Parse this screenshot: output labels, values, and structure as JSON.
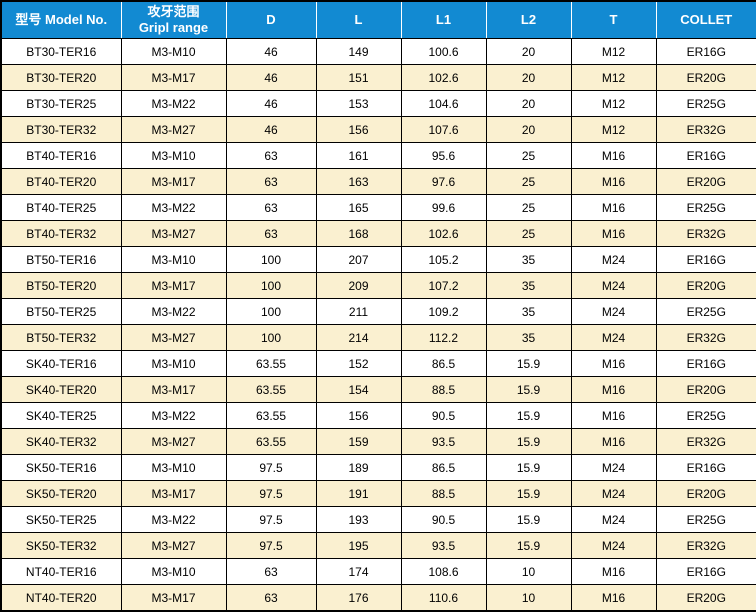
{
  "table": {
    "headers": [
      {
        "key": "model",
        "lines": [
          "型号 Model No."
        ]
      },
      {
        "key": "grip-range",
        "lines": [
          "攻牙范围",
          "Gripl range"
        ]
      },
      {
        "key": "d",
        "lines": [
          "D"
        ]
      },
      {
        "key": "l",
        "lines": [
          "L"
        ]
      },
      {
        "key": "l1",
        "lines": [
          "L1"
        ]
      },
      {
        "key": "l2",
        "lines": [
          "L2"
        ]
      },
      {
        "key": "t",
        "lines": [
          "T"
        ]
      },
      {
        "key": "collet",
        "lines": [
          "COLLET"
        ]
      }
    ],
    "rows": [
      [
        "BT30-TER16",
        "M3-M10",
        "46",
        "149",
        "100.6",
        "20",
        "M12",
        "ER16G"
      ],
      [
        "BT30-TER20",
        "M3-M17",
        "46",
        "151",
        "102.6",
        "20",
        "M12",
        "ER20G"
      ],
      [
        "BT30-TER25",
        "M3-M22",
        "46",
        "153",
        "104.6",
        "20",
        "M12",
        "ER25G"
      ],
      [
        "BT30-TER32",
        "M3-M27",
        "46",
        "156",
        "107.6",
        "20",
        "M12",
        "ER32G"
      ],
      [
        "BT40-TER16",
        "M3-M10",
        "63",
        "161",
        "95.6",
        "25",
        "M16",
        "ER16G"
      ],
      [
        "BT40-TER20",
        "M3-M17",
        "63",
        "163",
        "97.6",
        "25",
        "M16",
        "ER20G"
      ],
      [
        "BT40-TER25",
        "M3-M22",
        "63",
        "165",
        "99.6",
        "25",
        "M16",
        "ER25G"
      ],
      [
        "BT40-TER32",
        "M3-M27",
        "63",
        "168",
        "102.6",
        "25",
        "M16",
        "ER32G"
      ],
      [
        "BT50-TER16",
        "M3-M10",
        "100",
        "207",
        "105.2",
        "35",
        "M24",
        "ER16G"
      ],
      [
        "BT50-TER20",
        "M3-M17",
        "100",
        "209",
        "107.2",
        "35",
        "M24",
        "ER20G"
      ],
      [
        "BT50-TER25",
        "M3-M22",
        "100",
        "211",
        "109.2",
        "35",
        "M24",
        "ER25G"
      ],
      [
        "BT50-TER32",
        "M3-M27",
        "100",
        "214",
        "112.2",
        "35",
        "M24",
        "ER32G"
      ],
      [
        "SK40-TER16",
        "M3-M10",
        "63.55",
        "152",
        "86.5",
        "15.9",
        "M16",
        "ER16G"
      ],
      [
        "SK40-TER20",
        "M3-M17",
        "63.55",
        "154",
        "88.5",
        "15.9",
        "M16",
        "ER20G"
      ],
      [
        "SK40-TER25",
        "M3-M22",
        "63.55",
        "156",
        "90.5",
        "15.9",
        "M16",
        "ER25G"
      ],
      [
        "SK40-TER32",
        "M3-M27",
        "63.55",
        "159",
        "93.5",
        "15.9",
        "M16",
        "ER32G"
      ],
      [
        "SK50-TER16",
        "M3-M10",
        "97.5",
        "189",
        "86.5",
        "15.9",
        "M24",
        "ER16G"
      ],
      [
        "SK50-TER20",
        "M3-M17",
        "97.5",
        "191",
        "88.5",
        "15.9",
        "M24",
        "ER20G"
      ],
      [
        "SK50-TER25",
        "M3-M22",
        "97.5",
        "193",
        "90.5",
        "15.9",
        "M24",
        "ER25G"
      ],
      [
        "SK50-TER32",
        "M3-M27",
        "97.5",
        "195",
        "93.5",
        "15.9",
        "M24",
        "ER32G"
      ],
      [
        "NT40-TER16",
        "M3-M10",
        "63",
        "174",
        "108.6",
        "10",
        "M16",
        "ER16G"
      ],
      [
        "NT40-TER20",
        "M3-M17",
        "63",
        "176",
        "110.6",
        "10",
        "M16",
        "ER20G"
      ]
    ]
  },
  "colors": {
    "header_bg": "#128AD2",
    "header_text": "#FFFFFF",
    "row_bg": "#FFFFFF",
    "row_alt_bg": "#FAF0D0",
    "border": "#000000",
    "body_text": "#000000"
  }
}
